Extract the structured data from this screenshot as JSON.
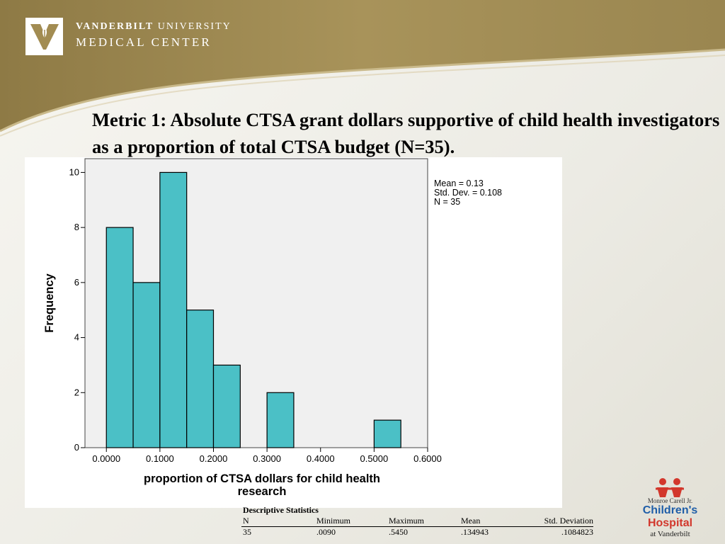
{
  "header": {
    "logo_line1_bold": "VANDERBILT",
    "logo_line1_light": " UNIVERSITY",
    "logo_line2": "MEDICAL CENTER"
  },
  "slide_title": "Metric 1:  Absolute CTSA grant dollars supportive of child health investigators as a proportion of total CTSA budget (N=35).",
  "chart_data": {
    "type": "bar",
    "title": "",
    "xlabel": "proportion of CTSA dollars for child health research",
    "xlabel_line1": "proportion of CTSA dollars for child health",
    "xlabel_line2": "research",
    "ylabel": "Frequency",
    "bin_width": 0.05,
    "bins_start": [
      0.0,
      0.05,
      0.1,
      0.15,
      0.2,
      0.3,
      0.5
    ],
    "values": [
      8,
      6,
      10,
      5,
      3,
      2,
      1
    ],
    "xlim": [
      -0.04,
      0.6
    ],
    "ylim": [
      0,
      10.5
    ],
    "x_ticks": [
      0.0,
      0.1,
      0.2,
      0.3,
      0.4,
      0.5,
      0.6
    ],
    "x_tick_labels": [
      "0.0000",
      "0.1000",
      "0.2000",
      "0.3000",
      "0.4000",
      "0.5000",
      "0.6000"
    ],
    "y_ticks": [
      0,
      2,
      4,
      6,
      8,
      10
    ],
    "y_tick_labels": [
      "0",
      "2",
      "4",
      "6",
      "8",
      "10"
    ],
    "bar_color": "#4bc0c6",
    "plot_bg": "#f0f0f0",
    "stats": [
      "Mean = 0.13",
      "Std. Dev. = 0.108",
      "N = 35"
    ]
  },
  "descriptive_stats": {
    "title": "Descriptive Statistics",
    "headers": [
      "N",
      "Minimum",
      "Maximum",
      "Mean",
      "Std. Deviation"
    ],
    "row": [
      "35",
      ".0090",
      ".5450",
      ".134943",
      ".1084823"
    ]
  },
  "childrens_logo": {
    "small": "Monroe Carell Jr.",
    "main_part1": "Children's",
    "main_part2": " Hospital",
    "at": "at Vanderbilt"
  },
  "colors": {
    "banner_gold": "#a28c52",
    "bar": "#4bc0c6"
  },
  "icons": [
    "vanderbilt-oak-leaf-icon",
    "childrens-hospital-figures-icon"
  ]
}
